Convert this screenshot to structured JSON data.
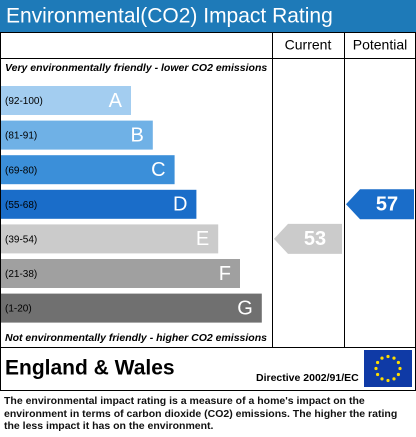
{
  "title": "Environmental(CO2) Impact Rating",
  "columns": {
    "current": "Current",
    "potential": "Potential"
  },
  "top_note": "Very environmentally friendly - lower CO2 emissions",
  "bottom_note": "Not environmentally friendly - higher CO2 emissions",
  "bands": [
    {
      "range": "(92-100)",
      "letter": "A",
      "color": "#a3cdf0"
    },
    {
      "range": "(81-91)",
      "letter": "B",
      "color": "#6fb1e6"
    },
    {
      "range": "(69-80)",
      "letter": "C",
      "color": "#3b8fd9"
    },
    {
      "range": "(55-68)",
      "letter": "D",
      "color": "#1a6dc9"
    },
    {
      "range": "(39-54)",
      "letter": "E",
      "color": "#cbcbcb"
    },
    {
      "range": "(21-38)",
      "letter": "F",
      "color": "#a0a0a0"
    },
    {
      "range": "(1-20)",
      "letter": "G",
      "color": "#707070"
    }
  ],
  "current": {
    "value": 53,
    "color": "#cbcbcb"
  },
  "potential": {
    "value": 57,
    "color": "#1a6dc9"
  },
  "region": "England & Wales",
  "directive": "Directive 2002/91/EC",
  "description": "The environmental impact rating is a measure of a home's impact on the environment in terms of carbon dioxide (CO2) emissions. The higher the rating the less impact it has on the environment."
}
